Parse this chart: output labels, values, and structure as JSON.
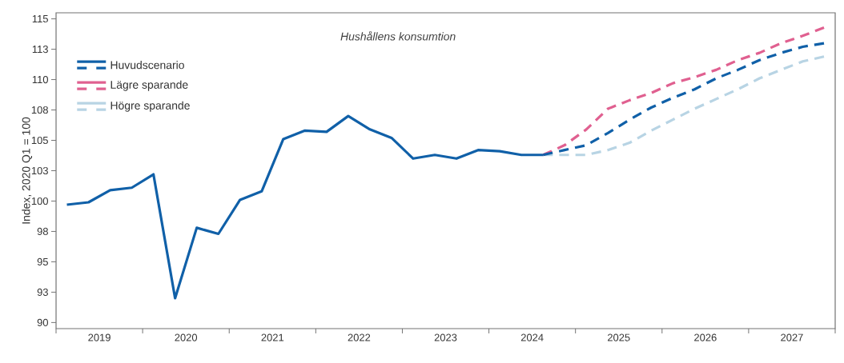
{
  "chart_data": {
    "type": "line",
    "title": "Hushållens konsumtion",
    "ylabel": "Index, 2020 Q1 = 100",
    "xlim": [
      2019,
      2028
    ],
    "ylim": [
      89.5,
      115.5
    ],
    "xticks": [
      {
        "value": 2019,
        "label": null
      },
      {
        "value": 2020,
        "label": null
      },
      {
        "value": 2021,
        "label": null
      },
      {
        "value": 2022,
        "label": null
      },
      {
        "value": 2023,
        "label": null
      },
      {
        "value": 2024,
        "label": null
      },
      {
        "value": 2025,
        "label": null
      },
      {
        "value": 2026,
        "label": null
      },
      {
        "value": 2027,
        "label": null
      },
      {
        "value": 2028,
        "label": null
      },
      {
        "value": 2019.5,
        "label": "2019"
      },
      {
        "value": 2020.5,
        "label": "2020"
      },
      {
        "value": 2021.5,
        "label": "2021"
      },
      {
        "value": 2022.5,
        "label": "2022"
      },
      {
        "value": 2023.5,
        "label": "2023"
      },
      {
        "value": 2024.5,
        "label": "2024"
      },
      {
        "value": 2025.5,
        "label": "2025"
      },
      {
        "value": 2026.5,
        "label": "2026"
      },
      {
        "value": 2027.5,
        "label": "2027"
      }
    ],
    "yticks": [
      90,
      {
        "value": 92.5,
        "label": "93"
      },
      95,
      {
        "value": 97.5,
        "label": "98"
      },
      100,
      {
        "value": 102.5,
        "label": "103"
      },
      105,
      {
        "value": 107.5,
        "label": "108"
      },
      110,
      {
        "value": 112.5,
        "label": "113"
      },
      115
    ],
    "grid": false,
    "legend": "top left",
    "marker": "none",
    "series": [
      {
        "name": "Huvudscenario",
        "color": "#1060a8",
        "line_style": "solid",
        "x": [
          2019.125,
          2019.375,
          2019.625,
          2019.875,
          2020.125,
          2020.375,
          2020.625,
          2020.875,
          2021.125,
          2021.375,
          2021.625,
          2021.875,
          2022.125,
          2022.375,
          2022.625,
          2022.875,
          2023.125,
          2023.375,
          2023.625,
          2023.875,
          2024.125,
          2024.375,
          2024.625
        ],
        "values": [
          99.7,
          99.9,
          100.9,
          101.1,
          102.2,
          92.0,
          97.8,
          97.3,
          100.1,
          100.8,
          105.1,
          105.8,
          105.7,
          107.0,
          105.9,
          105.2,
          103.5,
          103.8,
          103.5,
          104.2,
          104.1,
          103.8,
          103.8
        ]
      },
      {
        "color": "#1060a8",
        "line_style": "dashed",
        "x": [
          2024.625,
          2024.875,
          2025.125,
          2025.375,
          2025.625,
          2025.875,
          2026.125,
          2026.375,
          2026.625,
          2026.875,
          2027.125,
          2027.375,
          2027.625,
          2027.875
        ],
        "values": [
          103.8,
          104.2,
          104.6,
          105.6,
          106.7,
          107.7,
          108.5,
          109.2,
          110.1,
          110.8,
          111.6,
          112.2,
          112.7,
          113.0
        ]
      },
      {
        "name": "Lägre sparande",
        "color": "#e06090",
        "line_style": "dashed",
        "x": [
          2024.625,
          2024.875,
          2025.125,
          2025.375,
          2025.625,
          2025.875,
          2026.125,
          2026.375,
          2026.625,
          2026.875,
          2027.125,
          2027.375,
          2027.625,
          2027.875
        ],
        "values": [
          103.8,
          104.6,
          105.9,
          107.6,
          108.3,
          108.9,
          109.7,
          110.2,
          110.8,
          111.6,
          112.2,
          113.0,
          113.6,
          114.3
        ]
      },
      {
        "name": "Högre sparande",
        "color": "#b8d4e4",
        "line_style": "dashed",
        "x": [
          2024.625,
          2024.875,
          2025.125,
          2025.375,
          2025.625,
          2025.875,
          2026.125,
          2026.375,
          2026.625,
          2026.875,
          2027.125,
          2027.375,
          2027.625,
          2027.875
        ],
        "values": [
          103.8,
          103.8,
          103.8,
          104.2,
          104.8,
          105.8,
          106.7,
          107.6,
          108.4,
          109.2,
          110.1,
          110.8,
          111.5,
          111.9
        ]
      }
    ]
  }
}
